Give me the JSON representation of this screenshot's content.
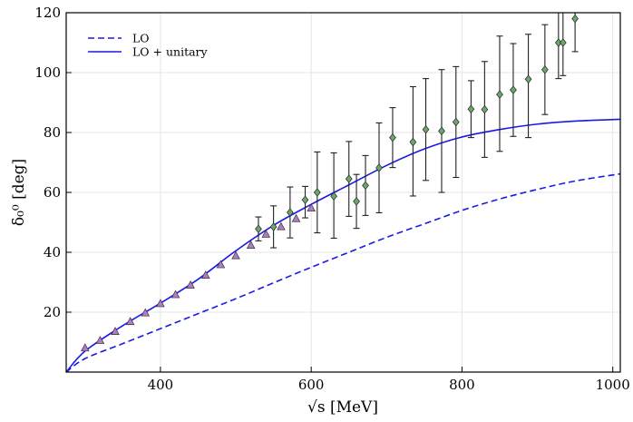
{
  "chart_data": {
    "type": "line",
    "title": "",
    "xlabel": "√s [MeV]",
    "ylabel": "δ₀⁰ [deg]",
    "xlim": [
      275,
      1010
    ],
    "ylim": [
      0,
      120
    ],
    "xticks": [
      400,
      600,
      800,
      1000
    ],
    "yticks": [
      20,
      40,
      60,
      80,
      100,
      120
    ],
    "grid": true,
    "legend_position": "top-left",
    "colors": {
      "curve": "#1a1ae6",
      "triangle": "#b07cc6",
      "diamond": "#6aa86a",
      "errorbar": "#222222",
      "grid": "#e6e6e6"
    },
    "legend": [
      {
        "label": "LO",
        "style": "dashed"
      },
      {
        "label": "LO + unitary",
        "style": "solid"
      }
    ],
    "series": [
      {
        "name": "LO",
        "style": "dashed",
        "x": [
          275,
          300,
          350,
          400,
          450,
          500,
          550,
          600,
          650,
          700,
          750,
          800,
          850,
          900,
          950,
          1010
        ],
        "y": [
          0,
          4.5,
          9.5,
          14.5,
          19.5,
          24.5,
          29.8,
          35,
          40,
          45,
          49.5,
          54,
          57.8,
          61,
          63.8,
          66.2
        ]
      },
      {
        "name": "LO + unitary",
        "style": "solid",
        "x": [
          275,
          300,
          350,
          400,
          450,
          500,
          550,
          600,
          650,
          700,
          750,
          800,
          850,
          900,
          950,
          1010
        ],
        "y": [
          0,
          7,
          15.5,
          23,
          31,
          40.5,
          49,
          56,
          62.5,
          69,
          74.5,
          78.5,
          81,
          82.8,
          83.8,
          84.4
        ]
      },
      {
        "name": "triangle data",
        "marker": "triangle",
        "x": [
          300,
          320,
          340,
          360,
          380,
          400,
          420,
          440,
          460,
          480,
          500,
          520,
          540,
          560,
          580,
          600
        ],
        "y": [
          8,
          10.5,
          13.5,
          16.8,
          19.7,
          22.8,
          25.8,
          29,
          32.3,
          35.8,
          38.8,
          42.3,
          46,
          48.5,
          51.2,
          54.7
        ]
      },
      {
        "name": "diamond data",
        "marker": "diamond",
        "x": [
          530,
          550,
          572,
          592,
          608,
          630,
          650,
          660,
          672,
          690,
          708,
          735,
          752,
          773,
          792,
          812,
          830,
          850,
          868,
          888,
          910,
          928,
          934,
          950
        ],
        "y": [
          47.8,
          48.5,
          53.3,
          57.5,
          60,
          58.7,
          64.5,
          57,
          62.3,
          68.2,
          78.3,
          76.8,
          81,
          80.5,
          83.5,
          87.8,
          87.7,
          92.7,
          94.2,
          97.8,
          101,
          110,
          110,
          118
        ],
        "err_low": [
          4,
          7,
          8.5,
          6,
          13.5,
          14,
          12.5,
          9,
          10,
          15,
          10,
          18,
          17,
          20.5,
          18.5,
          9.5,
          16,
          19,
          15.5,
          19.5,
          15,
          12,
          11,
          11
        ],
        "err_high": [
          4,
          7,
          8.5,
          4.5,
          13.5,
          14.5,
          12.5,
          9,
          10,
          15,
          10,
          18.5,
          17,
          20.5,
          18.5,
          9.5,
          16,
          19.5,
          15.5,
          15,
          15,
          12,
          11,
          5
        ]
      }
    ]
  }
}
